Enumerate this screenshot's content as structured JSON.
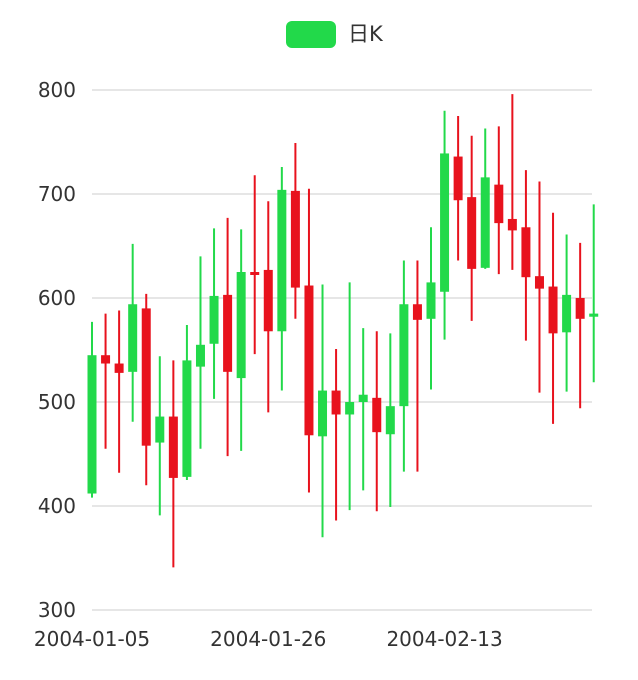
{
  "colors": {
    "up": "#22d94a",
    "down": "#e8121d",
    "grid": "#cccccc",
    "axis_text": "#333333"
  },
  "chart_data": {
    "type": "candlestick",
    "legend": [
      "日K"
    ],
    "legend_position": "top-center",
    "grid": true,
    "ylim": [
      300,
      800
    ],
    "y_ticks": [
      "800",
      "700",
      "600",
      "500",
      "400",
      "300"
    ],
    "x_tick_labels": [
      {
        "index": 0,
        "label": "2004-01-05"
      },
      {
        "index": 13,
        "label": "2004-01-26"
      },
      {
        "index": 26,
        "label": "2004-02-13"
      }
    ],
    "candles": [
      {
        "open": 412,
        "close": 545,
        "low": 408,
        "high": 577
      },
      {
        "open": 545,
        "close": 537,
        "low": 455,
        "high": 585
      },
      {
        "open": 537,
        "close": 528,
        "low": 432,
        "high": 588
      },
      {
        "open": 529,
        "close": 594,
        "low": 481,
        "high": 652
      },
      {
        "open": 590,
        "close": 458,
        "low": 420,
        "high": 604
      },
      {
        "open": 461,
        "close": 486,
        "low": 391,
        "high": 544
      },
      {
        "open": 486,
        "close": 427,
        "low": 341,
        "high": 540
      },
      {
        "open": 428,
        "close": 540,
        "low": 425,
        "high": 574
      },
      {
        "open": 534,
        "close": 555,
        "low": 455,
        "high": 640
      },
      {
        "open": 556,
        "close": 602,
        "low": 503,
        "high": 667
      },
      {
        "open": 603,
        "close": 529,
        "low": 448,
        "high": 677
      },
      {
        "open": 523,
        "close": 625,
        "low": 453,
        "high": 666
      },
      {
        "open": 625,
        "close": 623,
        "low": 546,
        "high": 718
      },
      {
        "open": 627,
        "close": 568,
        "low": 490,
        "high": 693
      },
      {
        "open": 568,
        "close": 704,
        "low": 511,
        "high": 726
      },
      {
        "open": 703,
        "close": 610,
        "low": 580,
        "high": 749
      },
      {
        "open": 612,
        "close": 468,
        "low": 413,
        "high": 705
      },
      {
        "open": 467,
        "close": 511,
        "low": 370,
        "high": 613
      },
      {
        "open": 511,
        "close": 488,
        "low": 386,
        "high": 551
      },
      {
        "open": 488,
        "close": 500,
        "low": 396,
        "high": 615
      },
      {
        "open": 500,
        "close": 507,
        "low": 415,
        "high": 571
      },
      {
        "open": 504,
        "close": 471,
        "low": 395,
        "high": 568
      },
      {
        "open": 469,
        "close": 496,
        "low": 399,
        "high": 566
      },
      {
        "open": 496,
        "close": 594,
        "low": 433,
        "high": 636
      },
      {
        "open": 594,
        "close": 579,
        "low": 433,
        "high": 636
      },
      {
        "open": 580,
        "close": 615,
        "low": 512,
        "high": 668
      },
      {
        "open": 606,
        "close": 739,
        "low": 560,
        "high": 780
      },
      {
        "open": 736,
        "close": 694,
        "low": 636,
        "high": 775
      },
      {
        "open": 697,
        "close": 628,
        "low": 578,
        "high": 756
      },
      {
        "open": 629,
        "close": 716,
        "low": 628,
        "high": 763
      },
      {
        "open": 709,
        "close": 672,
        "low": 623,
        "high": 765
      },
      {
        "open": 676,
        "close": 665,
        "low": 627,
        "high": 796
      },
      {
        "open": 668,
        "close": 620,
        "low": 559,
        "high": 723
      },
      {
        "open": 621,
        "close": 609,
        "low": 509,
        "high": 712
      },
      {
        "open": 611,
        "close": 566,
        "low": 479,
        "high": 682
      },
      {
        "open": 567,
        "close": 603,
        "low": 510,
        "high": 661
      },
      {
        "open": 600,
        "close": 580,
        "low": 494,
        "high": 653
      },
      {
        "open": 582,
        "close": 585,
        "low": 519,
        "high": 690
      }
    ]
  }
}
